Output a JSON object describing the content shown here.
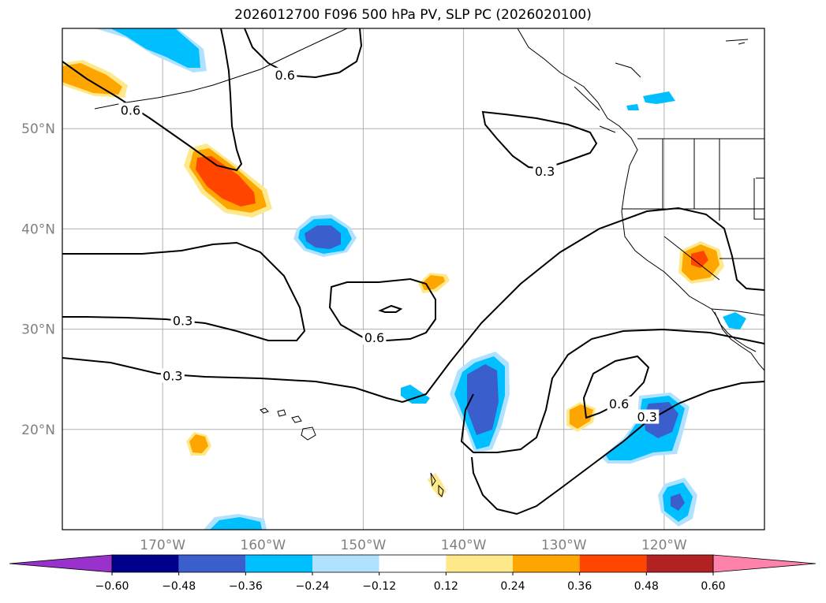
{
  "title": "2026012700 F096 500 hPa PV, SLP PC (2026020100)",
  "map": {
    "lon_range": [
      -180,
      -110
    ],
    "lat_range": [
      10,
      60
    ],
    "lon_ticks": [
      {
        "value": -170,
        "label": "170°W"
      },
      {
        "value": -160,
        "label": "160°W"
      },
      {
        "value": -150,
        "label": "150°W"
      },
      {
        "value": -140,
        "label": "140°W"
      },
      {
        "value": -130,
        "label": "130°W"
      },
      {
        "value": -120,
        "label": "120°W"
      }
    ],
    "lat_ticks": [
      {
        "value": 20,
        "label": "20°N"
      },
      {
        "value": 30,
        "label": "30°N"
      },
      {
        "value": 40,
        "label": "40°N"
      },
      {
        "value": 50,
        "label": "50°N"
      }
    ],
    "grid": true,
    "contour_labels": [
      {
        "text": "0.6",
        "lon": -157.8,
        "lat": 55.3
      },
      {
        "text": "0.6",
        "lon": -173.2,
        "lat": 51.8
      },
      {
        "text": "0.3",
        "lon": -131.9,
        "lat": 45.7
      },
      {
        "text": "0.3",
        "lon": -168.0,
        "lat": 30.8
      },
      {
        "text": "0.6",
        "lon": -148.9,
        "lat": 29.1
      },
      {
        "text": "0.3",
        "lon": -169.0,
        "lat": 25.3
      },
      {
        "text": "0.6",
        "lon": -124.5,
        "lat": 22.5
      },
      {
        "text": "0.3",
        "lon": -121.7,
        "lat": 21.2
      }
    ]
  },
  "colorbar": {
    "levels": [
      -0.6,
      -0.48,
      -0.36,
      -0.24,
      -0.12,
      0.12,
      0.24,
      0.36,
      0.48,
      0.6
    ],
    "tick_labels": [
      "−0.60",
      "−0.48",
      "−0.36",
      "−0.24",
      "−0.12",
      "0.12",
      "0.24",
      "0.36",
      "0.48",
      "0.60"
    ],
    "colors": [
      "#9932cc",
      "#00008b",
      "#3a5fcd",
      "#00bfff",
      "#b0e2ff",
      "#ffffff",
      "#fde98a",
      "#ffa500",
      "#ff4500",
      "#b22222",
      "#ff82ab"
    ],
    "extend": "both"
  }
}
